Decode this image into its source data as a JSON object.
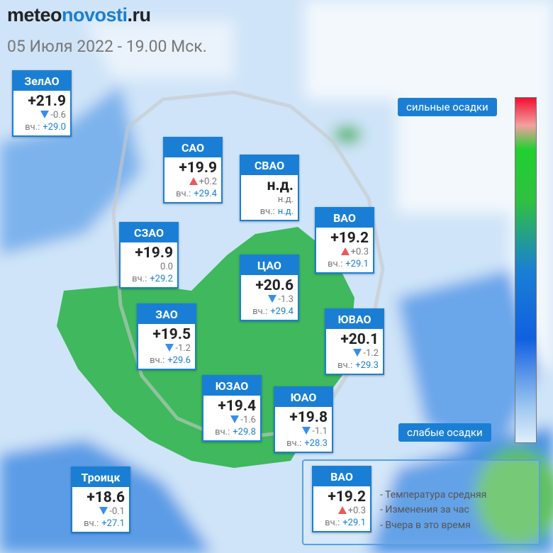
{
  "header": {
    "logo": [
      "meteo",
      "novosti",
      ".ru"
    ],
    "date": "05 Июля 2022 - 19.00 Мск."
  },
  "labels": {
    "yesterday": "вч.:"
  },
  "districts": [
    {
      "name": "ЗелАО",
      "temp": "+21.9",
      "change": "-0.6",
      "yesterday": "+29.0"
    },
    {
      "name": "САО",
      "temp": "+19.9",
      "change": "+0.2",
      "yesterday": "+29.4"
    },
    {
      "name": "СВАО",
      "temp": "н.д.",
      "change": "н.д.",
      "yesterday": "н.д."
    },
    {
      "name": "ВАО",
      "temp": "+19.2",
      "change": "+0.3",
      "yesterday": "+29.1"
    },
    {
      "name": "СЗАО",
      "temp": "+19.9",
      "change": "0.0",
      "yesterday": "+29.2"
    },
    {
      "name": "ЦАО",
      "temp": "+20.6",
      "change": "-1.3",
      "yesterday": "+29.4"
    },
    {
      "name": "ЗАО",
      "temp": "+19.5",
      "change": "-1.2",
      "yesterday": "+29.6"
    },
    {
      "name": "ЮВАО",
      "temp": "+20.1",
      "change": "-1.2",
      "yesterday": "+29.3"
    },
    {
      "name": "ЮЗАО",
      "temp": "+19.4",
      "change": "-1.6",
      "yesterday": "+29.8"
    },
    {
      "name": "ЮАО",
      "temp": "+19.8",
      "change": "-1.1",
      "yesterday": "+28.3"
    },
    {
      "name": "Троицк",
      "temp": "+18.6",
      "change": "-0.1",
      "yesterday": "+27.1"
    }
  ],
  "scale": {
    "top": "сильные осадки",
    "bottom": "слабые осадки"
  },
  "legend": {
    "sample": {
      "name": "ВАО",
      "temp": "+19.2",
      "change": "+0.3",
      "yesterday": "+29.1"
    },
    "items": [
      "- Температура средняя",
      "- Изменения за час",
      "- Вчера в это время"
    ]
  }
}
